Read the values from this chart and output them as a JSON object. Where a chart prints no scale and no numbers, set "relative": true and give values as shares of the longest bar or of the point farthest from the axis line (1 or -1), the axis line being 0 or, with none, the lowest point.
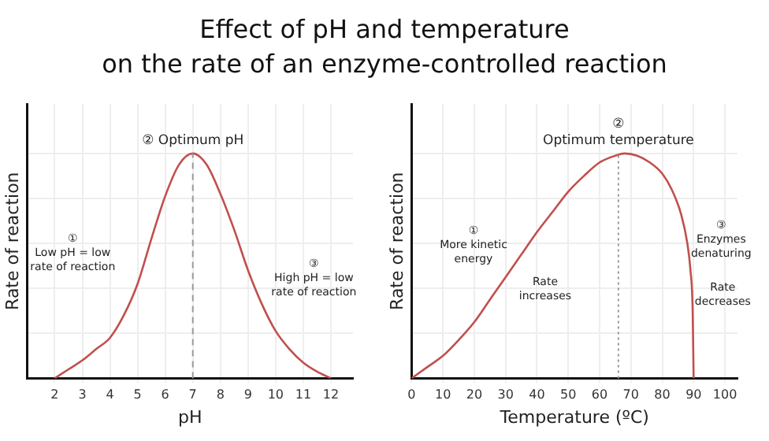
{
  "chart_data": [
    {
      "type": "line",
      "title": "Effect of pH and temperature\non the rate of an enzyme-controlled reaction",
      "xlabel": "pH",
      "ylabel": "Rate of reaction",
      "relative": true,
      "color": "#c0504d",
      "x": [
        2,
        2.5,
        3,
        3.5,
        4,
        4.5,
        5,
        5.5,
        6,
        6.5,
        7,
        7.5,
        8,
        8.5,
        9,
        9.5,
        10,
        10.5,
        11,
        11.5,
        12
      ],
      "values": [
        0,
        0.04,
        0.08,
        0.13,
        0.18,
        0.28,
        0.42,
        0.62,
        0.81,
        0.95,
        1,
        0.95,
        0.82,
        0.66,
        0.48,
        0.33,
        0.21,
        0.13,
        0.07,
        0.03,
        0
      ],
      "xlim": [
        1,
        12.8
      ],
      "xticks": [
        2,
        3,
        4,
        5,
        6,
        7,
        8,
        9,
        10,
        11,
        12
      ],
      "grid": true,
      "marker": "none",
      "line_style": "solid",
      "ref_lines": [
        {
          "axis": "x",
          "value": 7,
          "color": "#999999",
          "line_style": "dashed"
        }
      ],
      "annotations": [
        {
          "text": "② Optimum pH",
          "x": 7,
          "y": 1
        },
        "①\nLow pH = low\nrate of reaction",
        "③\nHigh pH = low\nrate of reaction"
      ]
    },
    {
      "type": "line",
      "xlabel": "Temperature (ºC)",
      "ylabel": "Rate of reaction",
      "relative": true,
      "color": "#c0504d",
      "x": [
        0,
        5,
        10,
        15,
        20,
        25,
        30,
        35,
        40,
        45,
        50,
        55,
        60,
        65,
        68,
        72,
        76,
        80,
        83,
        86,
        88,
        89,
        89.7,
        90
      ],
      "values": [
        0,
        0.05,
        0.1,
        0.17,
        0.25,
        0.35,
        0.45,
        0.55,
        0.65,
        0.74,
        0.83,
        0.9,
        0.96,
        0.99,
        1,
        0.99,
        0.96,
        0.91,
        0.84,
        0.73,
        0.6,
        0.48,
        0.3,
        0
      ],
      "xlim": [
        0,
        104
      ],
      "xticks": [
        0,
        10,
        20,
        30,
        40,
        50,
        60,
        70,
        80,
        90,
        100
      ],
      "grid": true,
      "marker": "none",
      "line_style": "solid",
      "ref_lines": [
        {
          "axis": "x",
          "value": 66,
          "color": "#999999",
          "line_style": "dotted"
        }
      ],
      "annotations": [
        {
          "text": "②\nOptimum temperature",
          "x": 66,
          "y": 1
        },
        "①\nMore kinetic\nenergy",
        "Rate\nincreases",
        "③\nEnzymes\ndenaturing",
        "Rate\ndecreases"
      ]
    }
  ]
}
